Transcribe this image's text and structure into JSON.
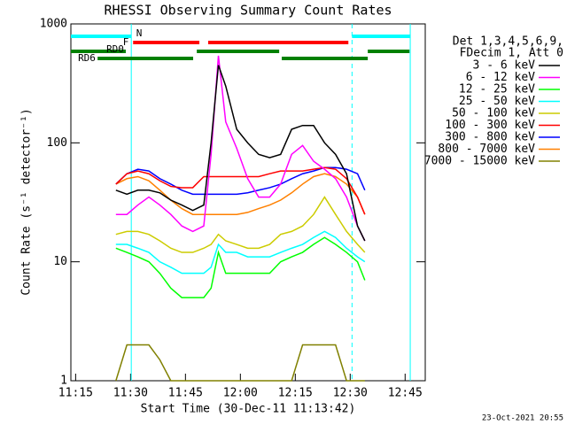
{
  "chart_data": {
    "type": "line",
    "title": "RHESSI Observing Summary Count Rates",
    "x_label": "Start Time (30-Dec-11 11:13:42)",
    "y_label": "Count Rate (s⁻¹ detector⁻¹)",
    "legend_header": [
      "Det 1,3,4,5,6,9,",
      "FDecim 1, Att 0"
    ],
    "footer": "23-Oct-2021 20:55",
    "log_y": true,
    "ylim": [
      1,
      1000
    ],
    "yticks": [
      1,
      10,
      100,
      1000
    ],
    "xlim": [
      13.7,
      110.5
    ],
    "xticks": [
      {
        "value": 15,
        "label": "11:15"
      },
      {
        "value": 30,
        "label": "11:30"
      },
      {
        "value": 45,
        "label": "11:45"
      },
      {
        "value": 60,
        "label": "12:00"
      },
      {
        "value": 75,
        "label": "12:15"
      },
      {
        "value": 90,
        "label": "12:30"
      },
      {
        "value": 105,
        "label": "12:45"
      }
    ],
    "x": [
      26,
      29,
      32,
      35,
      38,
      41,
      44,
      47,
      50,
      52,
      54,
      56,
      59,
      62,
      65,
      68,
      71,
      74,
      77,
      80,
      83,
      86,
      89,
      92,
      94
    ],
    "series": [
      {
        "name": "3 - 6 keV",
        "color": "#000000",
        "values": [
          40,
          37,
          40,
          40,
          38,
          33,
          30,
          27,
          30,
          100,
          450,
          300,
          130,
          100,
          80,
          75,
          80,
          130,
          140,
          140,
          100,
          80,
          55,
          20,
          15
        ]
      },
      {
        "name": "6 - 12 keV",
        "color": "#ff00ff",
        "values": [
          25,
          25,
          30,
          35,
          30,
          25,
          20,
          18,
          20,
          80,
          540,
          150,
          90,
          50,
          35,
          35,
          45,
          80,
          95,
          70,
          60,
          50,
          35,
          20,
          15
        ]
      },
      {
        "name": "12 - 25 keV",
        "color": "#00ff00",
        "values": [
          13,
          12,
          11,
          10,
          8,
          6,
          5,
          5,
          5,
          6,
          12,
          8,
          8,
          8,
          8,
          8,
          10,
          11,
          12,
          14,
          16,
          14,
          12,
          10,
          7
        ]
      },
      {
        "name": "25 - 50 keV",
        "color": "#00ffff",
        "values": [
          14,
          14,
          13,
          12,
          10,
          9,
          8,
          8,
          8,
          9,
          14,
          12,
          12,
          11,
          11,
          11,
          12,
          13,
          14,
          16,
          18,
          16,
          13,
          11,
          10
        ]
      },
      {
        "name": "50 - 100 keV",
        "color": "#cccc00",
        "values": [
          17,
          18,
          18,
          17,
          15,
          13,
          12,
          12,
          13,
          14,
          17,
          15,
          14,
          13,
          13,
          14,
          17,
          18,
          20,
          25,
          35,
          25,
          18,
          14,
          12
        ]
      },
      {
        "name": "100 - 300 keV",
        "color": "#ff0000",
        "values": [
          45,
          55,
          58,
          55,
          48,
          43,
          42,
          42,
          52,
          52,
          52,
          52,
          52,
          52,
          52,
          55,
          58,
          58,
          58,
          60,
          62,
          60,
          50,
          35,
          25
        ]
      },
      {
        "name": "300 - 800 keV",
        "color": "#0000ff",
        "values": [
          45,
          55,
          60,
          58,
          50,
          45,
          40,
          37,
          37,
          37,
          37,
          37,
          37,
          38,
          40,
          42,
          45,
          50,
          55,
          58,
          62,
          62,
          60,
          55,
          40
        ]
      },
      {
        "name": "800 - 7000 keV",
        "color": "#ff8000",
        "values": [
          45,
          50,
          52,
          48,
          40,
          33,
          28,
          25,
          25,
          25,
          25,
          25,
          25,
          26,
          28,
          30,
          33,
          38,
          45,
          52,
          55,
          52,
          45,
          35,
          25
        ]
      },
      {
        "name": "7000 - 15000 keV",
        "color": "#808000",
        "values": [
          1,
          2,
          2,
          2,
          1.5,
          1,
          1,
          1,
          1,
          1,
          1,
          1,
          1,
          1,
          1,
          1,
          1,
          1,
          2,
          2,
          2,
          2,
          1,
          1,
          1
        ]
      }
    ],
    "flags": [
      {
        "label": "N",
        "color": "#00ffff",
        "intervals": [
          [
            13.7,
            30.2
          ],
          [
            90.5,
            106.4
          ]
        ]
      },
      {
        "label": "F",
        "color": "#ff0000",
        "intervals": [
          [
            30.7,
            48.8
          ],
          [
            51.2,
            89.5
          ]
        ]
      },
      {
        "label": "RD0",
        "color": "#008000",
        "intervals": [
          [
            13.7,
            28.7
          ],
          [
            48.1,
            70.6
          ],
          [
            94.8,
            106.2
          ]
        ]
      },
      {
        "label": "RD6",
        "color": "#008000",
        "intervals": [
          [
            21,
            47.1
          ],
          [
            71.3,
            94.8
          ]
        ]
      }
    ]
  }
}
